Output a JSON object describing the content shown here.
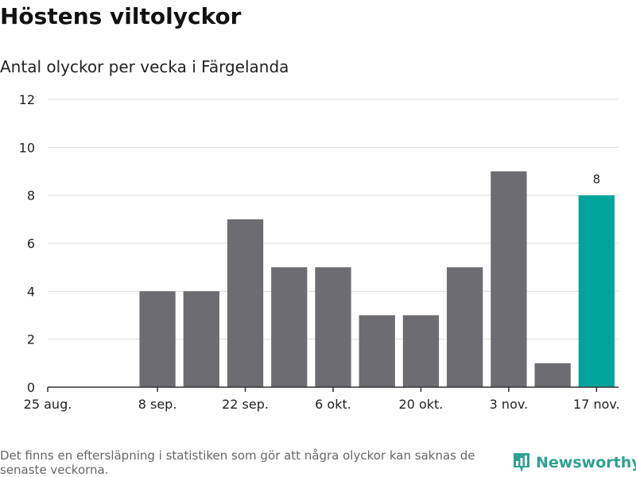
{
  "title": "Höstens viltolyckor",
  "subtitle": "Antal olyckor per vecka i Färgelanda",
  "chart_data": {
    "type": "bar",
    "title": "Höstens viltolyckor",
    "subtitle": "Antal olyckor per vecka i Färgelanda",
    "xlabel": "",
    "ylabel": "",
    "ylim": [
      0,
      12
    ],
    "yticks": [
      0,
      2,
      4,
      6,
      8,
      10,
      12
    ],
    "grid": true,
    "x_tick_labels": [
      "25 aug.",
      "8 sep.",
      "22 sep.",
      "6 okt.",
      "20 okt.",
      "3 nov.",
      "17 nov."
    ],
    "categories": [
      "25 aug.",
      "1 sep.",
      "8 sep.",
      "15 sep.",
      "22 sep.",
      "29 sep.",
      "6 okt.",
      "13 okt.",
      "20 okt.",
      "27 okt.",
      "3 nov.",
      "10 nov.",
      "17 nov."
    ],
    "values": [
      0,
      0,
      4,
      4,
      7,
      5,
      5,
      3,
      3,
      5,
      9,
      1,
      8
    ],
    "highlight_index": 12,
    "data_labels": [
      {
        "index": 12,
        "text": "8"
      }
    ],
    "colors": {
      "bar": "#6d6c71",
      "highlight": "#00a49a",
      "grid": "#dddddd",
      "axis": "#333333"
    }
  },
  "footnote": "Det finns en eftersläpning i statistiken som gör att några olyckor kan saknas de senaste veckorna.",
  "brand": {
    "name": "Newsworthy",
    "icon": "newsworthy-logo-icon",
    "color": "#2fa192"
  }
}
